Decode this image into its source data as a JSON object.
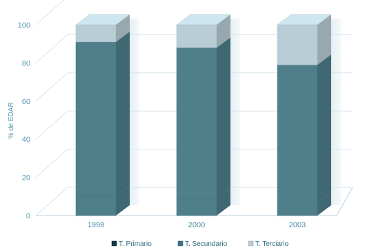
{
  "chart_data": {
    "type": "bar",
    "stacked": true,
    "style": "3d",
    "categories": [
      "1998",
      "2000",
      "2003"
    ],
    "series": [
      {
        "name": "T. Primario",
        "values": [
          10,
          9,
          7
        ],
        "color": "#4e7f8b"
      },
      {
        "name": "T. Secundario",
        "values": [
          81,
          79,
          72
        ],
        "color": "#4e7f8b"
      },
      {
        "name": "T. Terciario",
        "values": [
          9,
          12,
          21
        ],
        "color": "#b8cdd6"
      }
    ],
    "title": "",
    "xlabel": "",
    "ylabel": "% de EDAR",
    "ylim": [
      0,
      100
    ],
    "yticks": [
      "0",
      "20",
      "40",
      "60",
      "80",
      "100"
    ],
    "grid": true,
    "legend_position": "bottom",
    "legend_swatch_colors": [
      "#123a45",
      "#3f7384",
      "#b8cdd6"
    ]
  }
}
